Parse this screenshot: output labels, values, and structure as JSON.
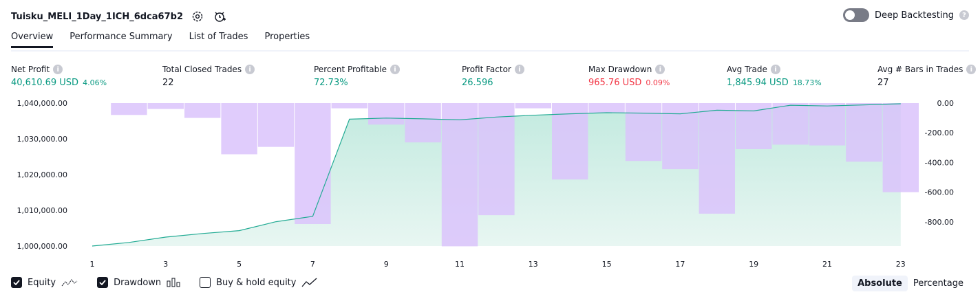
{
  "header": {
    "strategy_name": "Tuisku_MELI_1Day_1ICH_6dca67b2",
    "deep_backtesting_label": "Deep Backtesting",
    "help_glyph": "?"
  },
  "tabs": [
    {
      "label": "Overview",
      "active": true
    },
    {
      "label": "Performance Summary",
      "active": false
    },
    {
      "label": "List of Trades",
      "active": false
    },
    {
      "label": "Properties",
      "active": false
    }
  ],
  "metrics": [
    {
      "label": "Net Profit",
      "value": "40,610.69 USD",
      "pct": "4.06%",
      "color": "green"
    },
    {
      "label": "Total Closed Trades",
      "value": "22",
      "pct": "",
      "color": "dark"
    },
    {
      "label": "Percent Profitable",
      "value": "72.73%",
      "pct": "",
      "color": "green"
    },
    {
      "label": "Profit Factor",
      "value": "26.596",
      "pct": "",
      "color": "green"
    },
    {
      "label": "Max Drawdown",
      "value": "965.76 USD",
      "pct": "0.09%",
      "color": "red"
    },
    {
      "label": "Avg Trade",
      "value": "1,845.94 USD",
      "pct": "18.73%",
      "color": "green"
    },
    {
      "label": "Avg # Bars in Trades",
      "value": "27",
      "pct": "",
      "color": "dark"
    }
  ],
  "legend": {
    "equity_label": "Equity",
    "drawdown_label": "Drawdown",
    "buyhold_label": "Buy & hold equity",
    "equity_checked": true,
    "drawdown_checked": true,
    "buyhold_checked": false
  },
  "modes": {
    "absolute_label": "Absolute",
    "percentage_label": "Percentage",
    "active": "Absolute"
  },
  "colors": {
    "equity_line": "#22ab94",
    "equity_fill_top": "#c2eadf",
    "equity_fill_bottom": "#e8f6f2",
    "drawdown_bar": "#dbc3fc",
    "drawdown_overlap": "#b8b8e8",
    "green": "#089981",
    "red": "#f23645"
  },
  "chart_data": {
    "type": "bar+area",
    "x_ticks": [
      "1",
      "3",
      "5",
      "7",
      "9",
      "11",
      "13",
      "15",
      "17",
      "19",
      "21",
      "23"
    ],
    "x": [
      1,
      2,
      3,
      4,
      5,
      6,
      7,
      8,
      9,
      10,
      11,
      12,
      13,
      14,
      15,
      16,
      17,
      18,
      19,
      20,
      21,
      22,
      23
    ],
    "series": [
      {
        "name": "Equity",
        "axis": "left",
        "values": [
          1000000,
          1001000,
          1002500,
          1003500,
          1004300,
          1006800,
          1008300,
          1035500,
          1035800,
          1035600,
          1035300,
          1036100,
          1036600,
          1037000,
          1037300,
          1037200,
          1037000,
          1038000,
          1037800,
          1039400,
          1039200,
          1039500,
          1039800
        ]
      },
      {
        "name": "Drawdown",
        "axis": "right",
        "values": [
          0,
          -80,
          -40,
          -100,
          -345,
          -295,
          -815,
          -35,
          -145,
          -265,
          -965,
          -755,
          -35,
          -515,
          -65,
          -390,
          -445,
          -745,
          -310,
          -280,
          -285,
          -395,
          -600
        ]
      }
    ],
    "left_axis": {
      "ticks": [
        "1,000,000.00",
        "1,010,000.00",
        "1,020,000.00",
        "1,030,000.00",
        "1,040,000.00"
      ],
      "range": [
        1000000,
        1040000
      ]
    },
    "right_axis": {
      "ticks": [
        "0.00",
        "-200.00",
        "-400.00",
        "-600.00",
        "-800.00"
      ],
      "range": [
        -965,
        0
      ]
    },
    "grid": false
  }
}
